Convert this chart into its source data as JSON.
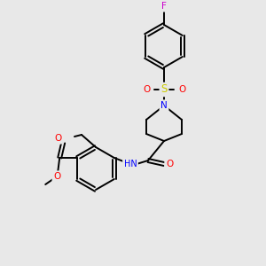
{
  "background_color": "#e8e8e8",
  "fig_width": 3.0,
  "fig_height": 3.0,
  "dpi": 100,
  "atom_colors": {
    "C": "#000000",
    "N": "#0000ff",
    "O": "#ff0000",
    "S": "#cccc00",
    "F": "#cc00cc",
    "H": "#000000"
  },
  "bond_color": "#000000",
  "bond_width": 1.4,
  "font_size_atoms": 7.5
}
